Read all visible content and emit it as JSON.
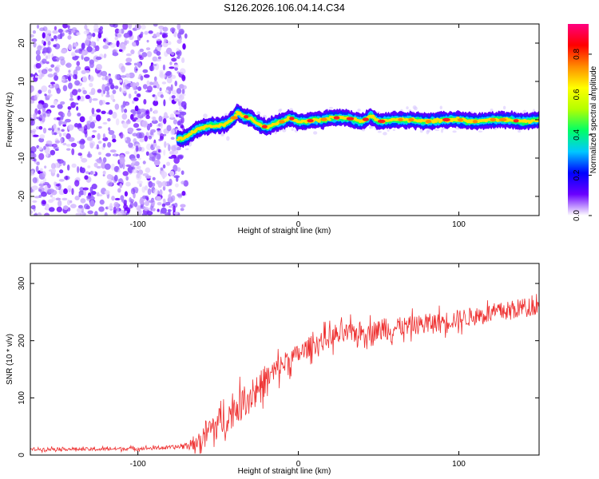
{
  "figure_title": "S126.2026.106.04.14.C34",
  "chart_data": [
    {
      "type": "heatmap",
      "title": "S126.2026.106.04.14.C34",
      "xlabel": "Height of straight line (km)",
      "ylabel": "Frequency (Hz)",
      "xlim": [
        -167,
        150
      ],
      "ylim": [
        -25,
        25
      ],
      "xticks": [
        -100,
        0,
        100
      ],
      "xtick_labels": [
        "-100",
        "0",
        "100"
      ],
      "yticks": [
        -20,
        -10,
        0,
        10,
        20
      ],
      "ytick_labels": [
        "-20",
        "-10",
        "0",
        "10",
        "20"
      ],
      "colorbar": {
        "label": "Normalized spectral amplitude",
        "range": [
          0,
          0.95
        ],
        "ticks": [
          0,
          0.2,
          0.4,
          0.6,
          0.8
        ],
        "tick_labels": [
          "0.0",
          "0.2",
          "0.4",
          "0.6",
          "0.8"
        ],
        "colormap": "rainbow",
        "stops": [
          "#ffffff",
          "#6a00ff",
          "#0000ff",
          "#00c8ff",
          "#00ff66",
          "#b4ff00",
          "#ffff00",
          "#ff8c00",
          "#ff0000",
          "#ff0080"
        ]
      },
      "noise_region": {
        "x_range": [
          -167,
          -70
        ],
        "y_range": [
          -25,
          25
        ],
        "amplitude": 0.1
      },
      "ridge": {
        "x": [
          -75,
          -72,
          -68,
          -65,
          -60,
          -55,
          -50,
          -45,
          -40,
          -38,
          -35,
          -30,
          -25,
          -20,
          -15,
          -10,
          -5,
          0,
          5,
          10,
          15,
          20,
          30,
          40,
          45,
          50,
          60,
          70,
          80,
          90,
          100,
          110,
          120,
          130,
          140,
          150
        ],
        "frequency": [
          -5,
          -5,
          -4,
          -3,
          -2,
          -1.5,
          -1.5,
          -1,
          0.5,
          2,
          1,
          0.5,
          -1,
          -2,
          -1,
          -0.5,
          0.5,
          -0.5,
          -0.5,
          0,
          0,
          0.5,
          0.5,
          -0.5,
          1,
          -0.5,
          0,
          0,
          -0.5,
          0,
          0,
          -0.5,
          0,
          0,
          -0.5,
          0
        ],
        "amplitude_level": "high"
      }
    },
    {
      "type": "line",
      "xlabel": "Height of straight line (km)",
      "ylabel": "SNR (10 * v/v)",
      "xlim": [
        -167,
        150
      ],
      "ylim": [
        0,
        335
      ],
      "xticks": [
        -100,
        0,
        100
      ],
      "xtick_labels": [
        "-100",
        "0",
        "100"
      ],
      "yticks": [
        0,
        100,
        200,
        300
      ],
      "ytick_labels": [
        "0",
        "100",
        "200",
        "300"
      ],
      "color": "#ee3030",
      "series": [
        {
          "name": "SNR",
          "x": [
            -167,
            -150,
            -130,
            -110,
            -90,
            -75,
            -65,
            -60,
            -55,
            -50,
            -45,
            -40,
            -35,
            -30,
            -25,
            -20,
            -15,
            -10,
            -5,
            0,
            5,
            10,
            15,
            20,
            25,
            30,
            40,
            50,
            60,
            70,
            80,
            90,
            100,
            110,
            120,
            130,
            140,
            150
          ],
          "values": [
            10,
            11,
            10,
            11,
            12,
            14,
            18,
            28,
            45,
            55,
            65,
            78,
            92,
            105,
            118,
            132,
            145,
            158,
            168,
            176,
            186,
            194,
            200,
            205,
            208,
            212,
            216,
            218,
            222,
            226,
            230,
            234,
            238,
            243,
            248,
            252,
            258,
            262
          ],
          "noise_band": [
            5,
            5,
            5,
            5,
            5,
            6,
            15,
            45,
            45,
            45,
            45,
            45,
            45,
            45,
            45,
            40,
            40,
            35,
            32,
            30,
            30,
            30,
            30,
            30,
            30,
            30,
            30,
            30,
            30,
            28,
            28,
            28,
            28,
            28,
            28,
            28,
            28,
            28
          ]
        }
      ]
    }
  ]
}
